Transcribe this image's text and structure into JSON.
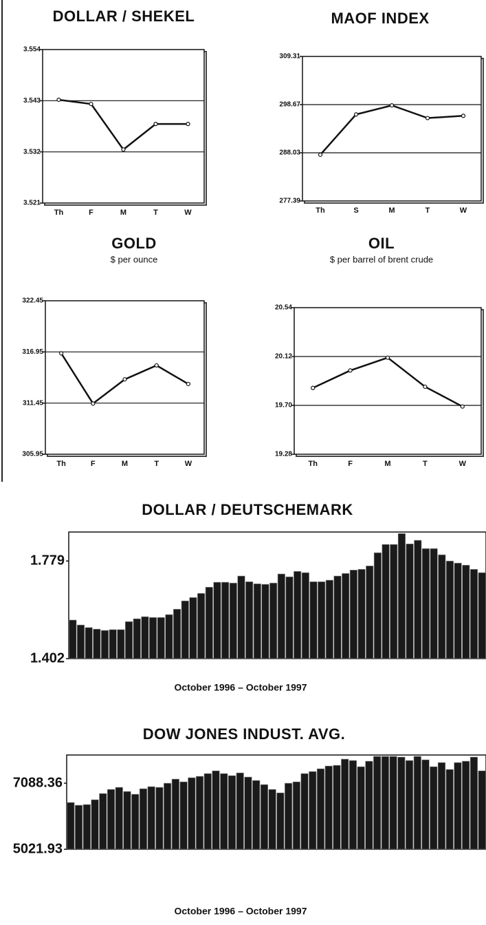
{
  "chart_data": [
    {
      "type": "line",
      "title": "DOLLAR / SHEKEL",
      "categories": [
        "Th",
        "F",
        "M",
        "T",
        "W"
      ],
      "values": [
        3.5432,
        3.5423,
        3.5325,
        3.538,
        3.538
      ],
      "ylim": [
        3.521,
        3.554
      ],
      "yticks": [
        3.521,
        3.532,
        3.543,
        3.554
      ],
      "grid": true,
      "color": "#111111"
    },
    {
      "type": "line",
      "title": "MAOF INDEX",
      "categories": [
        "Th",
        "S",
        "M",
        "T",
        "W"
      ],
      "values": [
        287.6,
        296.5,
        298.5,
        295.7,
        296.2
      ],
      "ylim": [
        277.39,
        309.31
      ],
      "yticks": [
        277.39,
        288.03,
        298.67,
        309.31
      ],
      "grid": true,
      "color": "#111111"
    },
    {
      "type": "line",
      "title": "GOLD",
      "subtitle": "$ per ounce",
      "categories": [
        "Th",
        "F",
        "M",
        "T",
        "W"
      ],
      "values": [
        316.8,
        311.4,
        314.0,
        315.5,
        313.5
      ],
      "ylim": [
        305.95,
        322.45
      ],
      "yticks": [
        305.95,
        311.45,
        316.95,
        322.45
      ],
      "grid": true,
      "color": "#111111"
    },
    {
      "type": "line",
      "title": "OIL",
      "subtitle": "$ per barrel of brent crude",
      "categories": [
        "Th",
        "F",
        "M",
        "T",
        "W"
      ],
      "values": [
        19.85,
        20.0,
        20.11,
        19.86,
        19.69
      ],
      "ylim": [
        19.28,
        20.54
      ],
      "yticks": [
        19.28,
        {
          "value": 19.7,
          "label": "19.70"
        },
        20.12,
        20.54
      ],
      "grid": true,
      "color": "#111111"
    },
    {
      "type": "bar",
      "title": "DOLLAR / DEUTSCHEMARK",
      "x_label": "October 1996 – October 1997",
      "values": [
        1.551,
        1.532,
        1.522,
        1.516,
        1.511,
        1.514,
        1.514,
        1.545,
        1.556,
        1.564,
        1.561,
        1.561,
        1.572,
        1.593,
        1.625,
        1.638,
        1.654,
        1.678,
        1.697,
        1.697,
        1.694,
        1.721,
        1.699,
        1.691,
        1.689,
        1.694,
        1.729,
        1.718,
        1.739,
        1.734,
        1.699,
        1.699,
        1.705,
        1.721,
        1.731,
        1.744,
        1.747,
        1.76,
        1.811,
        1.843,
        1.843,
        1.885,
        1.845,
        1.859,
        1.827,
        1.827,
        1.803,
        1.779,
        1.771,
        1.763,
        1.747,
        1.734
      ],
      "ylim": [
        1.402,
        1.891
      ],
      "yticks": [
        1.402,
        1.779
      ],
      "grid": false,
      "color": "#1a1a1a"
    },
    {
      "type": "bar",
      "title": "DOW JONES INDUST. AVG.",
      "x_label": "October 1996 – October 1997",
      "values": [
        6485.6,
        6399.5,
        6421.0,
        6571.7,
        6765.4,
        6894.6,
        6959.2,
        6830.0,
        6743.9,
        6916.1,
        6980.7,
        6959.2,
        7088.4,
        7217.5,
        7131.4,
        7260.5,
        7303.6,
        7389.7,
        7475.8,
        7389.7,
        7325.1,
        7411.2,
        7282.0,
        7174.4,
        7045.3,
        6894.6,
        6786.9,
        7088.4,
        7131.4,
        7389.7,
        7454.2,
        7540.3,
        7626.4,
        7647.9,
        7841.7,
        7798.6,
        7604.9,
        7777.1,
        7927.8,
        7927.8,
        7927.8,
        7906.3,
        7798.6,
        7927.8,
        7820.2,
        7604.9,
        7734.1,
        7518.8,
        7734.1,
        7777.1,
        7906.3,
        7475.8
      ],
      "ylim": [
        5021.93,
        7971
      ],
      "yticks": [
        5021.93,
        7088.36
      ],
      "grid": false,
      "color": "#1a1a1a"
    }
  ]
}
